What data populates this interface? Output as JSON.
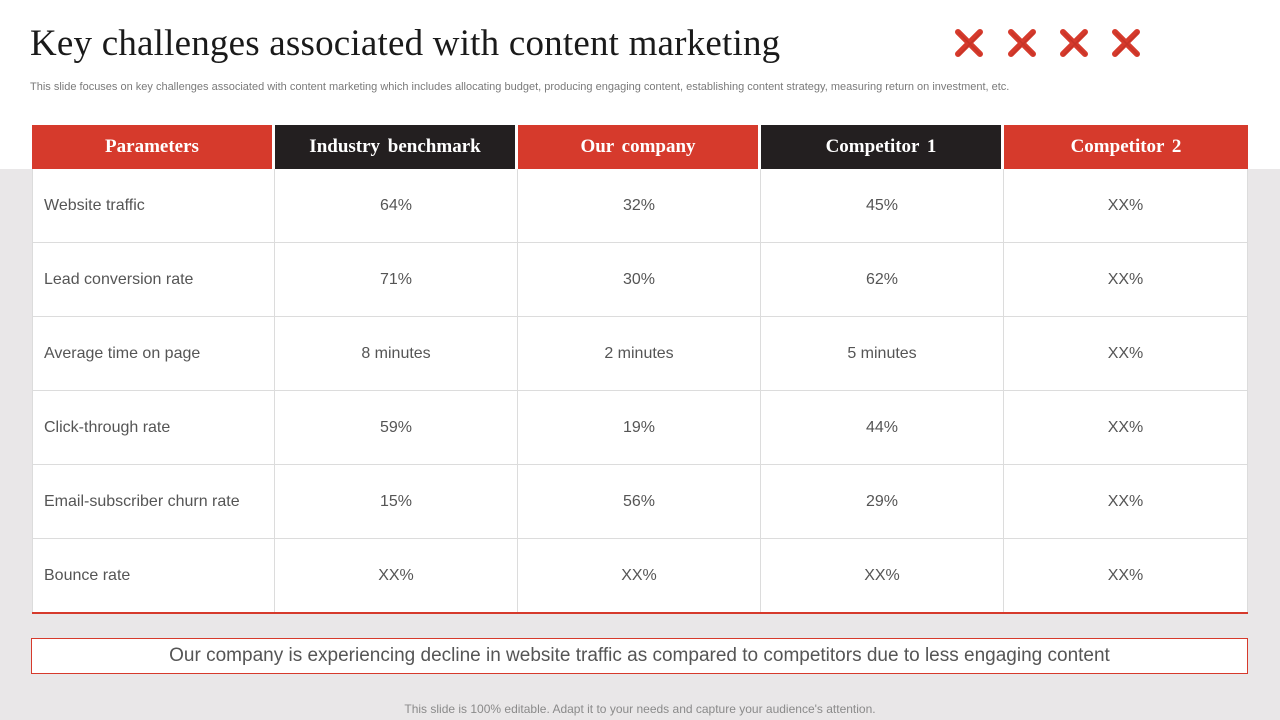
{
  "slide": {
    "title": "Key challenges associated with content marketing",
    "subtitle": "This slide focuses on key challenges associated with content marketing which includes allocating budget, producing engaging content, establishing content strategy, measuring return on investment, etc.",
    "decorative_icons": [
      "cross-mark-icon",
      "cross-mark-icon",
      "cross-mark-icon",
      "cross-mark-icon"
    ],
    "accent_color": "#d63a2c",
    "dark_color": "#231f20"
  },
  "table": {
    "headers": [
      "Parameters",
      "Industry  benchmark",
      "Our company",
      "Competitor  1",
      "Competitor  2"
    ],
    "rows": [
      [
        "Website traffic",
        "64%",
        "32%",
        "45%",
        "XX%"
      ],
      [
        "Lead conversion rate",
        "71%",
        "30%",
        "62%",
        "XX%"
      ],
      [
        "Average time on page",
        "8 minutes",
        "2 minutes",
        "5 minutes",
        "XX%"
      ],
      [
        "Click-through rate",
        "59%",
        "19%",
        "44%",
        "XX%"
      ],
      [
        "Email-subscriber churn rate",
        "15%",
        "56%",
        "29%",
        "XX%"
      ],
      [
        "Bounce rate",
        "XX%",
        "XX%",
        "XX%",
        "XX%"
      ]
    ]
  },
  "callout": {
    "text": "Our company is experiencing decline in website traffic as compared to competitors due to less engaging content"
  },
  "footer": {
    "text": "This slide is 100% editable. Adapt it to your needs and capture your audience's attention."
  }
}
